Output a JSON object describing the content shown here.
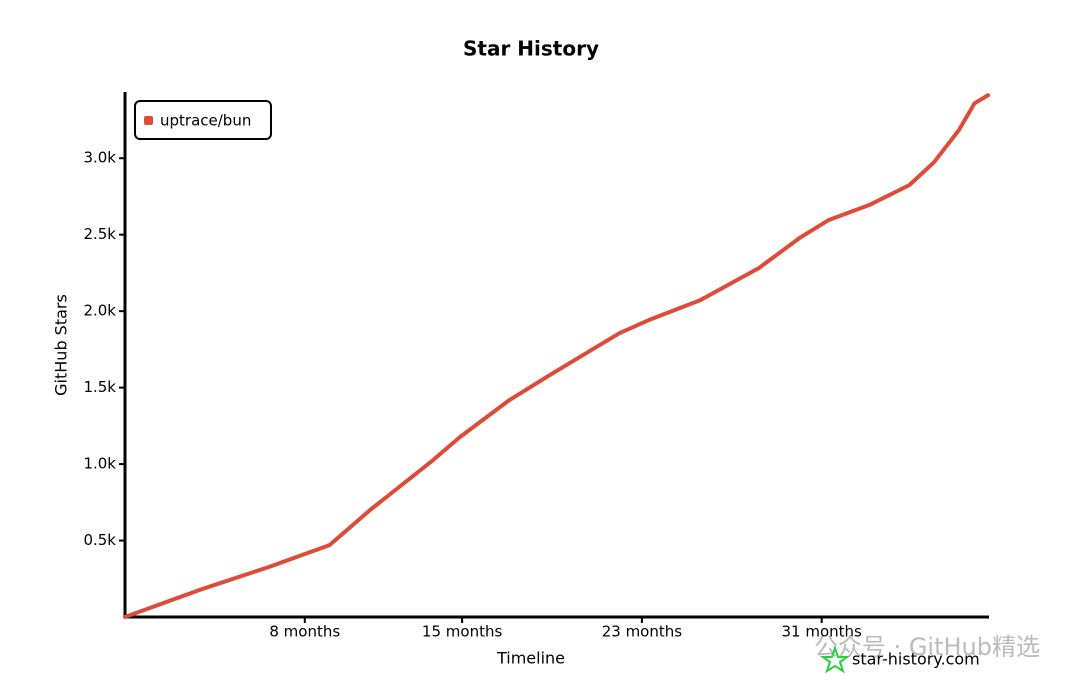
{
  "chart_data": {
    "type": "line",
    "title": "Star History",
    "x_label": "Timeline",
    "y_label": "GitHub Stars",
    "x": [
      0,
      3.3,
      6.4,
      9.1,
      10.9,
      13.6,
      14.9,
      17.1,
      18.9,
      22,
      23.3,
      25.6,
      28.2,
      30,
      31.3,
      33.1,
      34.9,
      36,
      37.1,
      37.8,
      38.4
    ],
    "series": [
      {
        "name": "uptrace/bun",
        "color": "#dd4b39",
        "values": [
          0,
          176,
          327,
          470,
          699,
          1013,
          1176,
          1418,
          1582,
          1856,
          1941,
          2072,
          2281,
          2477,
          2595,
          2693,
          2824,
          2974,
          3183,
          3359,
          3412
        ]
      }
    ],
    "xlim": [
      0,
      38.4
    ],
    "xticks": [
      {
        "value": 8,
        "label": "8 months"
      },
      {
        "value": 15,
        "label": "15 months"
      },
      {
        "value": 23,
        "label": "23 months"
      },
      {
        "value": 31,
        "label": "31 months"
      }
    ],
    "ylim": [
      0,
      3420
    ],
    "yticks": [
      {
        "value": 500,
        "label": "0.5k"
      },
      {
        "value": 1000,
        "label": "1.0k"
      },
      {
        "value": 1500,
        "label": "1.5k"
      },
      {
        "value": 2000,
        "label": "2.0k"
      },
      {
        "value": 2500,
        "label": "2.5k"
      },
      {
        "value": 3000,
        "label": "3.0k"
      }
    ],
    "legend": "top-left",
    "watermark": "公众号 · GitHub精选",
    "credit": "star-history.com"
  }
}
